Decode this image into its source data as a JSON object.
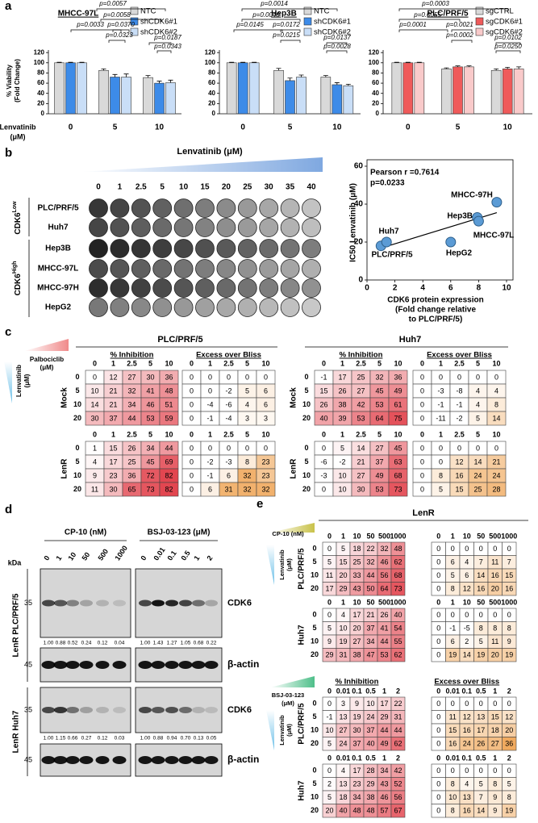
{
  "panels": [
    "a",
    "b",
    "c",
    "d",
    "e"
  ],
  "chart_data": [
    {
      "type": "bar",
      "title": "MHCC-97L",
      "categories": [
        "0",
        "5",
        "10"
      ],
      "xlabel": [
        "Lenvatinib",
        "(μM)"
      ],
      "ylabel": [
        "% Viability",
        "(Fold Change)"
      ],
      "series": [
        {
          "name": "NTC",
          "color": "#d9d9d9",
          "values": [
            100,
            85,
            71
          ],
          "errors": [
            1,
            3,
            4
          ]
        },
        {
          "name": "shCDK6#1",
          "color": "#3d8be8",
          "values": [
            100,
            72,
            60
          ],
          "errors": [
            1,
            5,
            4
          ]
        },
        {
          "name": "shCDK6#2",
          "color": "#c9def7",
          "values": [
            100,
            72,
            61
          ],
          "errors": [
            1,
            6,
            5
          ]
        }
      ],
      "ylim": [
        0,
        125
      ],
      "yticks": [
        0,
        20,
        40,
        60,
        80,
        100,
        120
      ],
      "annotations": [
        "p=0.0057",
        "p=0.0058",
        "p=0.0033",
        "p=0.0370",
        "p=0.0323",
        "p=0.0187",
        "p=0.0343"
      ]
    },
    {
      "type": "bar",
      "title": "Hep3B",
      "categories": [
        "0",
        "5",
        "10"
      ],
      "series": [
        {
          "name": "NTC",
          "color": "#d9d9d9",
          "values": [
            100,
            85,
            72
          ],
          "errors": [
            1,
            4,
            3
          ]
        },
        {
          "name": "shCDK6#1",
          "color": "#3d8be8",
          "values": [
            100,
            65,
            57
          ],
          "errors": [
            1,
            5,
            4
          ]
        },
        {
          "name": "shCDK6#2",
          "color": "#c9def7",
          "values": [
            100,
            72,
            55
          ],
          "errors": [
            1,
            4,
            3
          ]
        }
      ],
      "ylim": [
        0,
        125
      ],
      "yticks": [
        0,
        20,
        40,
        60,
        80,
        100,
        120
      ],
      "annotations": [
        "p=0.0014",
        "p=0.0040",
        "p=0.0145",
        "p=0.0172",
        "p=0.0215",
        "p=0.0137",
        "p=0.0028"
      ]
    },
    {
      "type": "bar",
      "title": "PLC/PRF/5",
      "categories": [
        "0",
        "5",
        "10"
      ],
      "series": [
        {
          "name": "sgCTRL",
          "color": "#d9d9d9",
          "values": [
            100,
            88,
            85
          ],
          "errors": [
            1,
            2,
            3
          ]
        },
        {
          "name": "sgCDK6#1",
          "color": "#ef5a5a",
          "values": [
            100,
            92,
            88
          ],
          "errors": [
            1,
            2,
            3
          ]
        },
        {
          "name": "sgCDK6#2",
          "color": "#f9caca",
          "values": [
            100,
            92,
            88
          ],
          "errors": [
            1,
            2,
            4
          ]
        }
      ],
      "ylim": [
        0,
        125
      ],
      "yticks": [
        0,
        20,
        40,
        60,
        80,
        100,
        120
      ],
      "annotations": [
        "p=0.0003",
        "p=0.0055",
        "p=0.0001",
        "p=0.0021",
        "p=0.0002",
        "p=0.0102",
        "p=0.0250"
      ]
    },
    {
      "type": "scatter",
      "labels": [
        "PLC/PRF/5",
        "Huh7",
        "Hep3B",
        "MHCC-97L",
        "MHCC-97H",
        "HepG2"
      ],
      "x": [
        1.0,
        1.4,
        7.9,
        8.0,
        9.3,
        6.0
      ],
      "values": [
        18,
        20,
        33,
        31,
        41,
        20
      ],
      "color": "#5b9bd5",
      "xlim": [
        0,
        10
      ],
      "ylim": [
        0,
        60
      ],
      "xticks": [
        0,
        2,
        4,
        6,
        8,
        10
      ],
      "yticks": [
        0,
        20,
        40,
        60
      ],
      "xlabel": [
        "CDK6 protein expression",
        "(Fold change relative",
        "to PLC/PRF/5)"
      ],
      "ylabel": "IC50 Lenvatinib (μM)",
      "annotations": [
        "Pearson r =0.7614",
        "p=0.0233"
      ]
    }
  ],
  "plate": {
    "title": "Lenvatinib (μM)",
    "doses": [
      0,
      1,
      2.5,
      5,
      10,
      15,
      20,
      25,
      30,
      35,
      40
    ],
    "rows": [
      "PLC/PRF/5",
      "Huh7",
      "Hep3B",
      "MHCC-97L",
      "MHCC-97H",
      "HepG2"
    ],
    "groups": [
      {
        "text": "CDK6",
        "sup": "Low"
      },
      {
        "text": "CDK6",
        "sup": "High"
      }
    ]
  },
  "heatmap_c": {
    "col_drug": [
      "Palbociclib",
      "(μM)"
    ],
    "row_drug": [
      "Lenvatinib",
      "(μM)"
    ],
    "blocks": [
      {
        "title": "PLC/PRF/5",
        "subtitles": [
          "% Inhibition",
          "Excess over Bliss"
        ],
        "columns": [
          0,
          1,
          2.5,
          5,
          10
        ],
        "rows": [
          0,
          5,
          10,
          20
        ],
        "groups": [
          {
            "label": "Mock",
            "inhibition": [
              [
                0,
                12,
                27,
                30,
                36
              ],
              [
                10,
                21,
                32,
                41,
                48
              ],
              [
                14,
                21,
                34,
                46,
                51
              ],
              [
                30,
                37,
                44,
                53,
                59
              ]
            ],
            "bliss": [
              [
                0,
                0,
                0,
                0,
                0
              ],
              [
                0,
                0,
                -2,
                5,
                6
              ],
              [
                0,
                -4,
                -6,
                4,
                6
              ],
              [
                0,
                -1,
                -4,
                3,
                3
              ]
            ]
          },
          {
            "label": "LenR",
            "inhibition": [
              [
                1,
                15,
                26,
                34,
                44
              ],
              [
                4,
                17,
                25,
                45,
                69
              ],
              [
                9,
                23,
                36,
                72,
                82
              ],
              [
                11,
                30,
                65,
                73,
                82
              ]
            ],
            "bliss": [
              [
                0,
                0,
                0,
                0,
                0
              ],
              [
                0,
                -2,
                -3,
                8,
                23
              ],
              [
                0,
                -1,
                6,
                32,
                23
              ],
              [
                0,
                6,
                31,
                32,
                32
              ]
            ]
          }
        ]
      },
      {
        "title": "Huh7",
        "subtitles": [
          "% Inhibition",
          "Excess over Bliss"
        ],
        "columns": [
          0,
          1,
          2.5,
          5,
          10
        ],
        "rows": [
          0,
          5,
          10,
          20
        ],
        "groups": [
          {
            "label": "Mock",
            "inhibition": [
              [
                -1,
                17,
                25,
                32,
                36
              ],
              [
                15,
                26,
                27,
                45,
                49
              ],
              [
                26,
                38,
                42,
                53,
                61
              ],
              [
                40,
                39,
                53,
                64,
                75
              ]
            ],
            "bliss": [
              [
                0,
                0,
                0,
                0,
                0
              ],
              [
                0,
                -3,
                -8,
                4,
                4
              ],
              [
                0,
                -1,
                -1,
                4,
                8
              ],
              [
                0,
                -11,
                -2,
                5,
                14
              ]
            ]
          },
          {
            "label": "LenR",
            "inhibition": [
              [
                0,
                5,
                14,
                27,
                45
              ],
              [
                -6,
                -2,
                21,
                37,
                63
              ],
              [
                -3,
                10,
                27,
                49,
                68
              ],
              [
                0,
                10,
                30,
                53,
                73
              ]
            ],
            "bliss": [
              [
                0,
                0,
                0,
                0,
                0
              ],
              [
                0,
                0,
                12,
                14,
                21
              ],
              [
                0,
                8,
                16,
                24,
                24
              ],
              [
                0,
                5,
                15,
                25,
                28
              ]
            ]
          }
        ]
      }
    ]
  },
  "blot": {
    "kda": "kDa",
    "treatments": [
      {
        "label": "CP-10 (nM)",
        "doses": [
          0,
          1,
          10,
          50,
          500,
          1000
        ]
      },
      {
        "label": "BSJ-03-123 (μM)",
        "doses": [
          0,
          0.01,
          0.1,
          0.5,
          1,
          2
        ]
      }
    ],
    "lines": [
      {
        "label": "LenR PLC/PRF/5",
        "target": "CDK6",
        "target_kda": 35,
        "control": "β-actin",
        "control_kda": 45,
        "quant": [
          [
            1.0,
            0.88,
            0.52,
            0.24,
            0.12,
            0.04
          ],
          [
            1.0,
            1.43,
            1.27,
            1.05,
            0.68,
            0.22
          ]
        ],
        "quant_labels": [
          [
            "1.00",
            "0.88",
            "0.52",
            "0.24",
            "0.12",
            "0.04"
          ],
          [
            "1.00",
            "1.43",
            "1.27",
            "1.05",
            "0.68",
            "0.22"
          ]
        ]
      },
      {
        "label": "LenR Huh7",
        "target": "CDK6",
        "target_kda": 35,
        "control": "β-actin",
        "control_kda": 45,
        "quant": [
          [
            1.0,
            1.15,
            0.66,
            0.27,
            0.12,
            0.03
          ],
          [
            1.0,
            0.88,
            0.94,
            0.7,
            0.13,
            0.05
          ]
        ],
        "quant_labels": [
          [
            "1.00",
            "1.15",
            "0.66",
            "0.27",
            "0.12",
            "0.03"
          ],
          [
            "1.00",
            "0.88",
            "0.94",
            "0.70",
            "0.13",
            "0.05"
          ]
        ]
      }
    ]
  },
  "heatmap_e": {
    "title": "LenR",
    "row_drug": [
      "Lenvatinib",
      "(μM)"
    ],
    "sections": [
      {
        "drug": [
          "CP-10 (nM)"
        ],
        "columns": [
          0,
          1,
          10,
          50,
          500,
          1000
        ],
        "rows": [
          0,
          5,
          10,
          20
        ],
        "groups": [
          {
            "label": "PLC/PRF/5",
            "inhibition": [
              [
                0,
                5,
                18,
                22,
                32,
                48
              ],
              [
                5,
                15,
                25,
                32,
                46,
                62
              ],
              [
                11,
                20,
                33,
                44,
                56,
                68
              ],
              [
                17,
                29,
                43,
                50,
                64,
                73
              ]
            ],
            "bliss": [
              [
                0,
                0,
                0,
                0,
                0,
                0
              ],
              [
                0,
                6,
                4,
                7,
                11,
                7
              ],
              [
                0,
                5,
                6,
                14,
                16,
                15
              ],
              [
                0,
                8,
                12,
                16,
                20,
                16
              ]
            ]
          },
          {
            "label": "Huh7",
            "inhibition": [
              [
                0,
                4,
                17,
                21,
                26,
                40
              ],
              [
                5,
                10,
                20,
                37,
                41,
                54
              ],
              [
                9,
                19,
                27,
                34,
                44,
                55
              ],
              [
                29,
                31,
                38,
                47,
                53,
                62
              ]
            ],
            "bliss": [
              [
                0,
                0,
                0,
                0,
                0,
                0
              ],
              [
                0,
                -1,
                -5,
                8,
                8,
                8
              ],
              [
                0,
                6,
                2,
                5,
                11,
                9
              ],
              [
                0,
                19,
                14,
                19,
                20,
                19
              ]
            ]
          }
        ]
      },
      {
        "drug": [
          "BSJ-03-123",
          "(μM)"
        ],
        "subtitles": [
          "% Inhibition",
          "Excess over Bliss"
        ],
        "columns": [
          0,
          0.01,
          0.1,
          0.5,
          1,
          2
        ],
        "rows": [
          0,
          5,
          10,
          20
        ],
        "groups": [
          {
            "label": "PLC/PRF/5",
            "inhibition": [
              [
                0,
                3,
                9,
                10,
                17,
                22
              ],
              [
                -1,
                13,
                19,
                24,
                29,
                31
              ],
              [
                10,
                27,
                30,
                37,
                44,
                44
              ],
              [
                5,
                24,
                37,
                40,
                49,
                62
              ]
            ],
            "bliss": [
              [
                0,
                0,
                0,
                0,
                0,
                0
              ],
              [
                0,
                11,
                12,
                13,
                15,
                12
              ],
              [
                0,
                15,
                16,
                17,
                18,
                20
              ],
              [
                0,
                16,
                24,
                26,
                27,
                36
              ]
            ]
          },
          {
            "label": "Huh7",
            "inhibition": [
              [
                0,
                4,
                17,
                28,
                34,
                42
              ],
              [
                2,
                13,
                23,
                29,
                43,
                52
              ],
              [
                5,
                18,
                34,
                38,
                46,
                56
              ],
              [
                20,
                40,
                48,
                48,
                57,
                67
              ]
            ],
            "bliss": [
              [
                0,
                0,
                0,
                0,
                0,
                0
              ],
              [
                0,
                8,
                4,
                5,
                8,
                5
              ],
              [
                0,
                10,
                13,
                7,
                9,
                8
              ],
              [
                0,
                8,
                16,
                14,
                9,
                19
              ]
            ]
          }
        ]
      }
    ]
  }
}
